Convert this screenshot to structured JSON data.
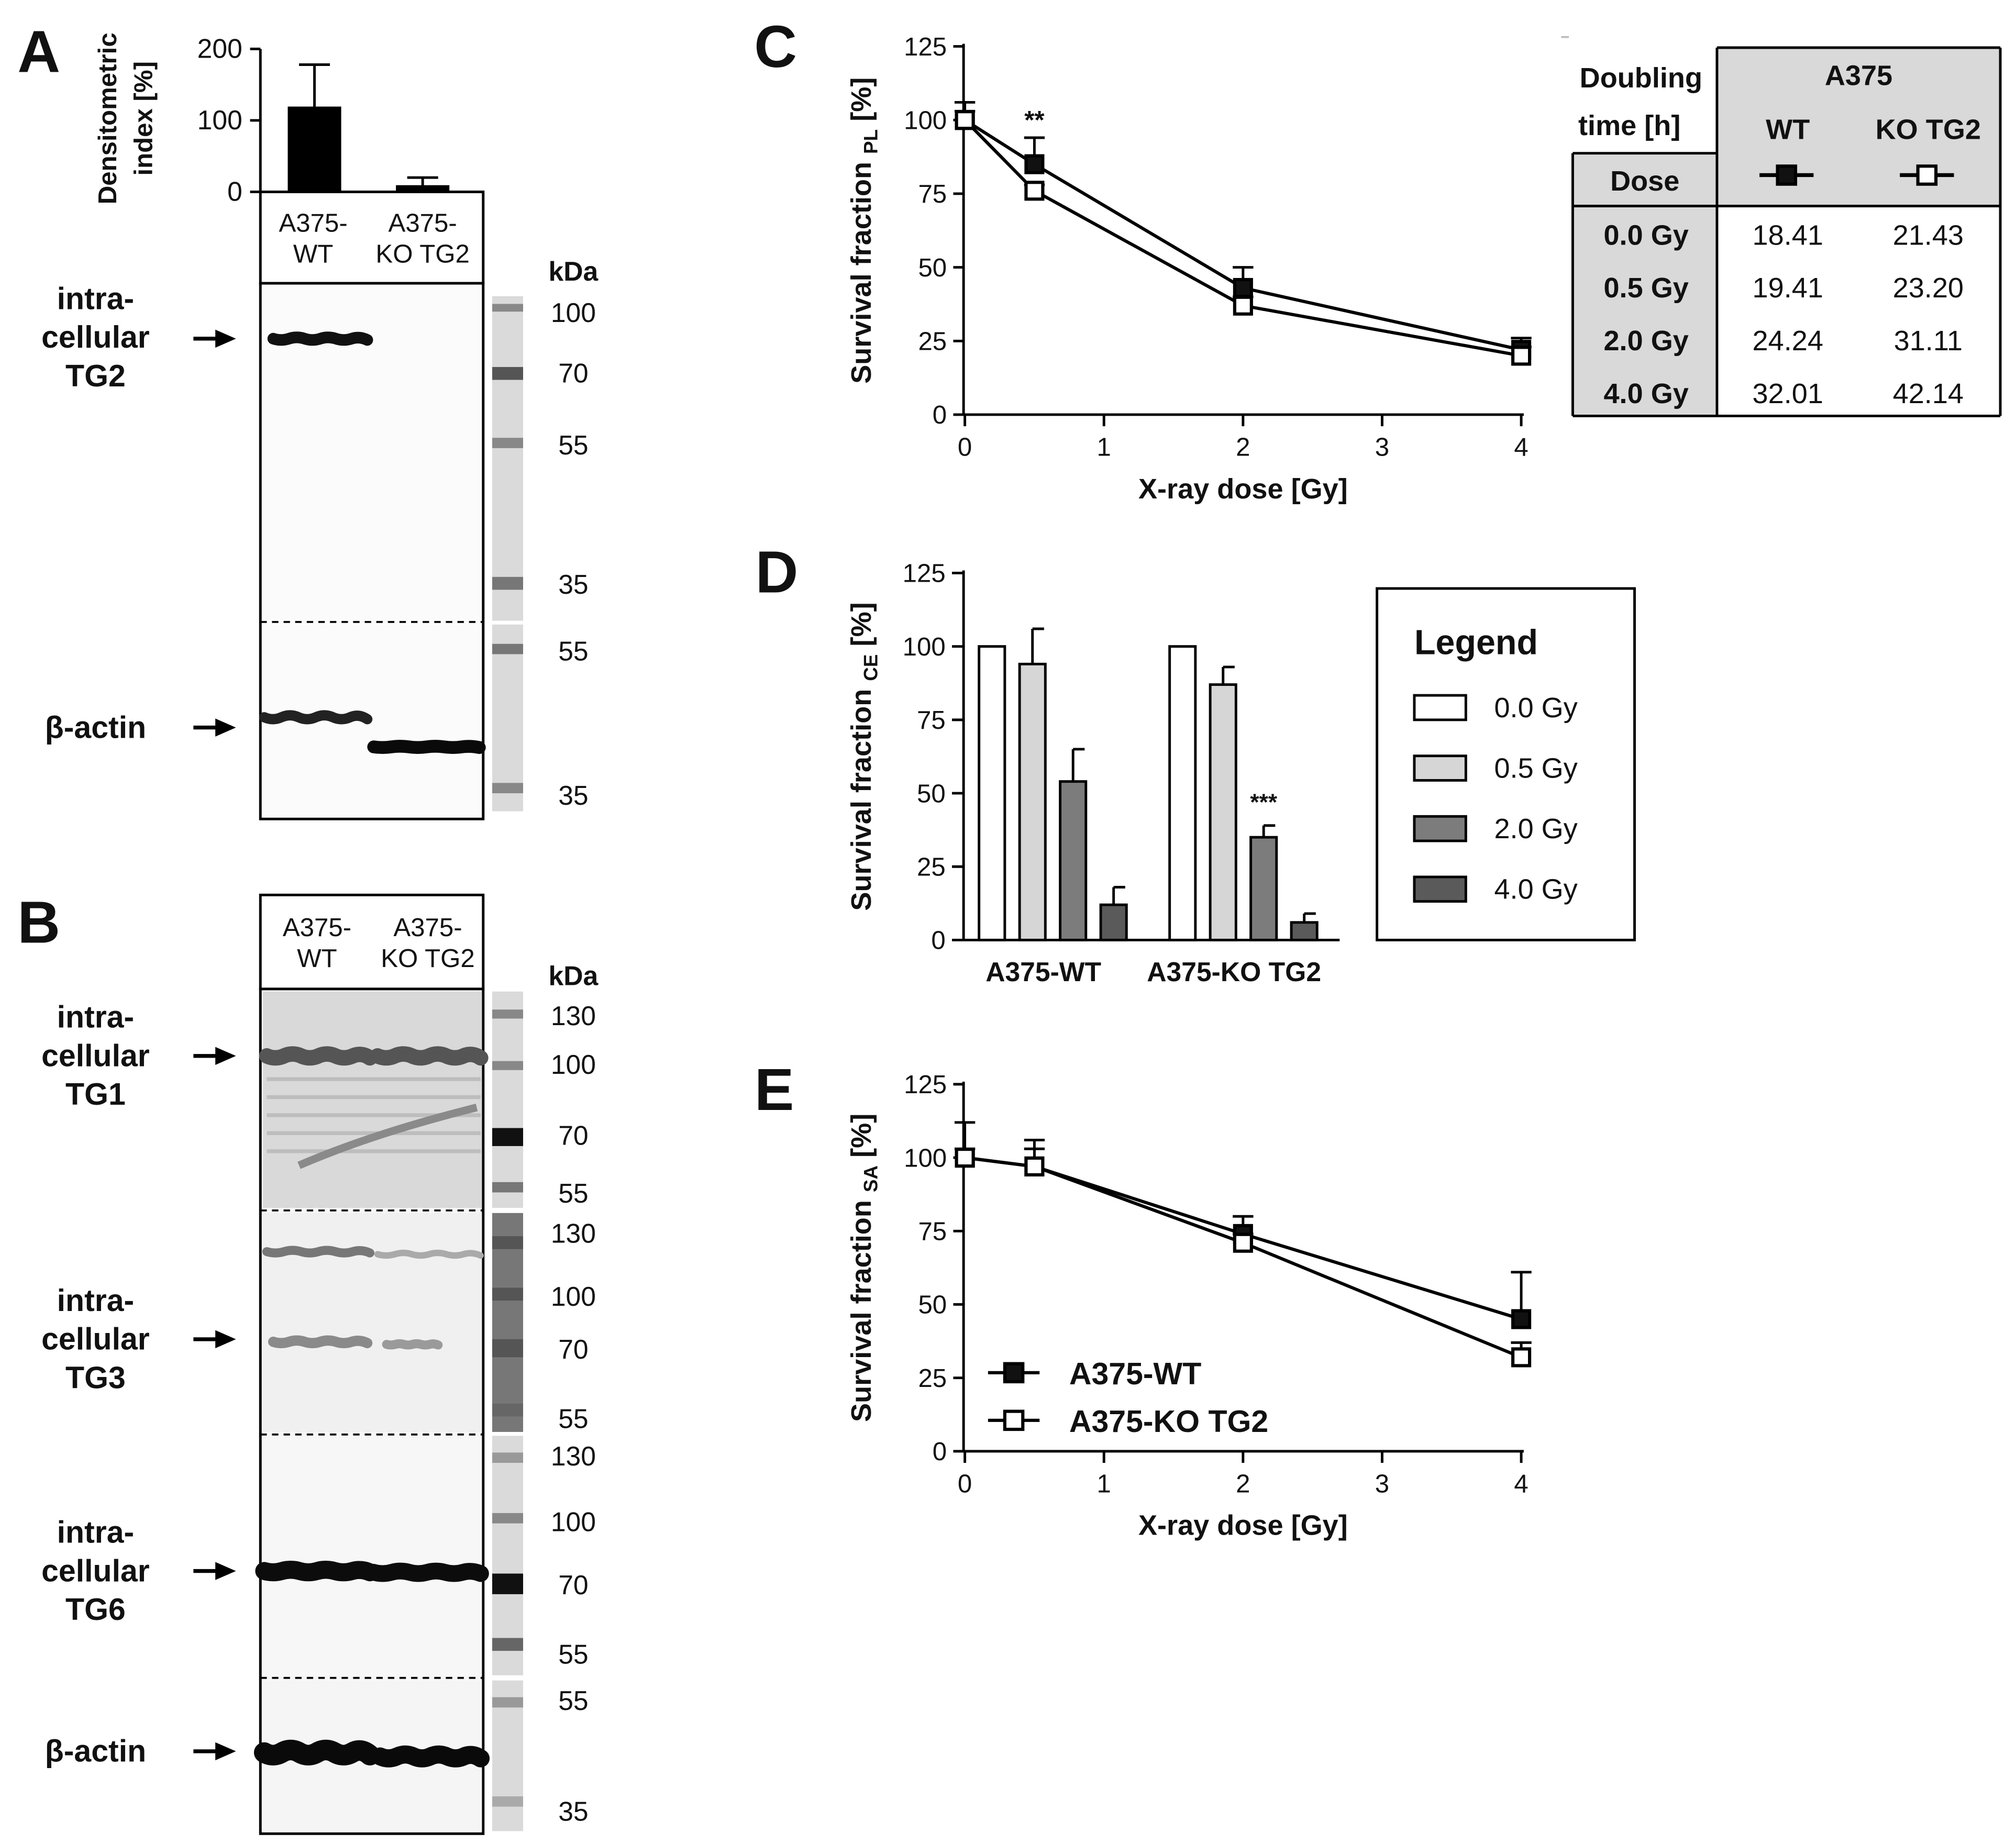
{
  "panel_letters": {
    "a": "A",
    "b": "B",
    "c": "C",
    "d": "D",
    "e": "E"
  },
  "units": {
    "kda": "kDa"
  },
  "panelA": {
    "lanes": [
      "A375-WT",
      "A375-KO TG2"
    ],
    "lane_lines": [
      [
        "A375-",
        "WT"
      ],
      [
        "A375-",
        "KO TG2"
      ]
    ],
    "targets": [
      {
        "lines": [
          "intra-",
          "cellular",
          "TG2"
        ]
      },
      {
        "lines": [
          "β-actin"
        ]
      }
    ],
    "markers_top": [
      "100",
      "70",
      "55",
      "35"
    ],
    "markers_bottom": [
      "55",
      "35"
    ]
  },
  "panelB": {
    "lane_lines": [
      [
        "A375-",
        "WT"
      ],
      [
        "A375-",
        "KO TG2"
      ]
    ],
    "targets": [
      {
        "lines": [
          "intra-",
          "cellular",
          "TG1"
        ],
        "markers": [
          "130",
          "100",
          "70",
          "55"
        ]
      },
      {
        "lines": [
          "intra-",
          "cellular",
          "TG3"
        ],
        "markers": [
          "130",
          "100",
          "70",
          "55"
        ]
      },
      {
        "lines": [
          "intra-",
          "cellular",
          "TG6"
        ],
        "markers": [
          "130",
          "100",
          "70",
          "55"
        ]
      },
      {
        "lines": [
          "β-actin"
        ],
        "markers": [
          "55",
          "35"
        ]
      }
    ]
  },
  "table": {
    "corner": [
      "Doubling",
      "time [h]"
    ],
    "group": "A375",
    "cols": [
      "WT",
      "KO TG2"
    ],
    "dose_header": "Dose",
    "rows": [
      {
        "dose": "0.0 Gy",
        "wt": "18.41",
        "ko": "21.43"
      },
      {
        "dose": "0.5 Gy",
        "wt": "19.41",
        "ko": "23.20"
      },
      {
        "dose": "2.0 Gy",
        "wt": "24.24",
        "ko": "31.11"
      },
      {
        "dose": "4.0 Gy",
        "wt": "32.01",
        "ko": "42.14"
      }
    ]
  },
  "legendD": {
    "title": "Legend",
    "items": [
      {
        "label": "0.0 Gy",
        "color": "#ffffff"
      },
      {
        "label": "0.5 Gy",
        "color": "#d6d6d6"
      },
      {
        "label": "2.0 Gy",
        "color": "#7c7c7c"
      },
      {
        "label": "4.0 Gy",
        "color": "#5a5a5a"
      }
    ]
  },
  "chart_data": [
    {
      "id": "A",
      "type": "bar",
      "ylabel": "Densitometric index [%]",
      "ylabel_lines": [
        "Densitometric",
        "index [%]"
      ],
      "categories": [
        "A375-WT",
        "A375-KO TG2"
      ],
      "values": [
        118,
        8
      ],
      "errors": [
        60,
        12
      ],
      "ylim": [
        0,
        200
      ],
      "yticks": [
        0,
        100,
        200
      ]
    },
    {
      "id": "C",
      "type": "line",
      "xlabel": "X-ray dose [Gy]",
      "ylabel": "Survival fraction PL [%]",
      "ylabel_main": "Survival fraction ",
      "ylabel_sub": "PL",
      "ylabel_tail": " [%]",
      "xlim": [
        0,
        4
      ],
      "ylim": [
        0,
        125
      ],
      "xticks": [
        0,
        1,
        2,
        3,
        4
      ],
      "yticks": [
        0,
        25,
        50,
        75,
        100,
        125
      ],
      "series": [
        {
          "name": "A375-WT",
          "marker": "filled",
          "x": [
            0,
            0.5,
            2,
            4
          ],
          "y": [
            100,
            85,
            43,
            22
          ],
          "err": [
            6,
            9,
            7,
            4
          ]
        },
        {
          "name": "A375-KO TG2",
          "marker": "open",
          "x": [
            0,
            0.5,
            2,
            4
          ],
          "y": [
            100,
            76,
            37,
            20
          ],
          "err": [
            3,
            2,
            3,
            3
          ]
        }
      ],
      "annotations": [
        {
          "x": 0.5,
          "y": 97,
          "text": "**"
        }
      ]
    },
    {
      "id": "D",
      "type": "bar",
      "ylabel": "Survival fraction CE [%]",
      "ylabel_main": "Survival fraction ",
      "ylabel_sub": "CE",
      "ylabel_tail": " [%]",
      "categories": [
        "A375-WT",
        "A375-KO TG2"
      ],
      "ylim": [
        0,
        125
      ],
      "yticks": [
        0,
        25,
        50,
        75,
        100,
        125
      ],
      "series": [
        {
          "name": "0.0 Gy",
          "values": [
            100,
            100
          ],
          "errors": [
            0,
            0
          ]
        },
        {
          "name": "0.5 Gy",
          "values": [
            94,
            87
          ],
          "errors": [
            12,
            6
          ]
        },
        {
          "name": "2.0 Gy",
          "values": [
            54,
            35
          ],
          "errors": [
            11,
            4
          ]
        },
        {
          "name": "4.0 Gy",
          "values": [
            12,
            6
          ],
          "errors": [
            6,
            3
          ]
        }
      ],
      "annotations": [
        {
          "category": 1,
          "series": 2,
          "text": "***"
        }
      ]
    },
    {
      "id": "E",
      "type": "line",
      "xlabel": "X-ray dose [Gy]",
      "ylabel": "Survival fraction SA [%]",
      "ylabel_main": "Survival fraction ",
      "ylabel_sub": "SA",
      "ylabel_tail": " [%]",
      "xlim": [
        0,
        4
      ],
      "ylim": [
        0,
        125
      ],
      "xticks": [
        0,
        1,
        2,
        3,
        4
      ],
      "yticks": [
        0,
        25,
        50,
        75,
        100,
        125
      ],
      "series": [
        {
          "name": "A375-WT",
          "marker": "filled",
          "x": [
            0,
            0.5,
            2,
            4
          ],
          "y": [
            100,
            97,
            74,
            45
          ],
          "err": [
            12,
            9,
            6,
            16
          ]
        },
        {
          "name": "A375-KO TG2",
          "marker": "open",
          "x": [
            0,
            0.5,
            2,
            4
          ],
          "y": [
            100,
            97,
            71,
            32
          ],
          "err": [
            3,
            6,
            3,
            5
          ]
        }
      ]
    }
  ]
}
